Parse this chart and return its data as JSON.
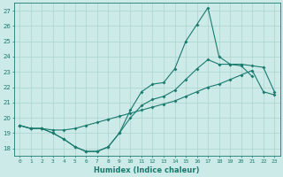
{
  "xlabel": "Humidex (Indice chaleur)",
  "bg_color": "#cceae7",
  "grid_color": "#aad4d0",
  "line_color": "#1a7a6e",
  "xlim": [
    -0.5,
    23.5
  ],
  "ylim": [
    17.5,
    27.5
  ],
  "yticks": [
    18,
    19,
    20,
    21,
    22,
    23,
    24,
    25,
    26,
    27
  ],
  "xticks": [
    0,
    1,
    2,
    3,
    4,
    5,
    6,
    7,
    8,
    9,
    10,
    11,
    12,
    13,
    14,
    15,
    16,
    17,
    18,
    19,
    20,
    21,
    22,
    23
  ],
  "line1_x": [
    0,
    1,
    2,
    3,
    4,
    5,
    6,
    7,
    8,
    9,
    10,
    11,
    12,
    13,
    14,
    15,
    16,
    17,
    18,
    19,
    20,
    21
  ],
  "line1_y": [
    19.5,
    19.3,
    19.3,
    19.0,
    18.6,
    18.1,
    17.8,
    17.8,
    18.1,
    19.0,
    20.5,
    21.7,
    22.2,
    22.3,
    23.2,
    25.0,
    26.1,
    27.2,
    24.0,
    23.5,
    23.4,
    22.7
  ],
  "line2_x": [
    0,
    1,
    2,
    3,
    4,
    5,
    6,
    7,
    8,
    9,
    10,
    11,
    12,
    13,
    14,
    15,
    16,
    17,
    18,
    19,
    20,
    21,
    22,
    23
  ],
  "line2_y": [
    19.5,
    19.3,
    19.3,
    19.2,
    19.2,
    19.3,
    19.5,
    19.7,
    19.9,
    20.1,
    20.3,
    20.5,
    20.7,
    20.9,
    21.1,
    21.4,
    21.7,
    22.0,
    22.2,
    22.5,
    22.8,
    23.1,
    21.7,
    21.5
  ],
  "line3_x": [
    0,
    1,
    2,
    3,
    4,
    5,
    6,
    7,
    8,
    9,
    10,
    11,
    12,
    13,
    14,
    15,
    16,
    17,
    18,
    19,
    20,
    21,
    22,
    23
  ],
  "line3_y": [
    19.5,
    19.3,
    19.3,
    19.0,
    18.6,
    18.1,
    17.8,
    17.8,
    18.1,
    19.0,
    20.0,
    20.8,
    21.2,
    21.4,
    21.8,
    22.5,
    23.2,
    23.8,
    23.5,
    23.5,
    23.5,
    23.4,
    23.3,
    21.7
  ]
}
